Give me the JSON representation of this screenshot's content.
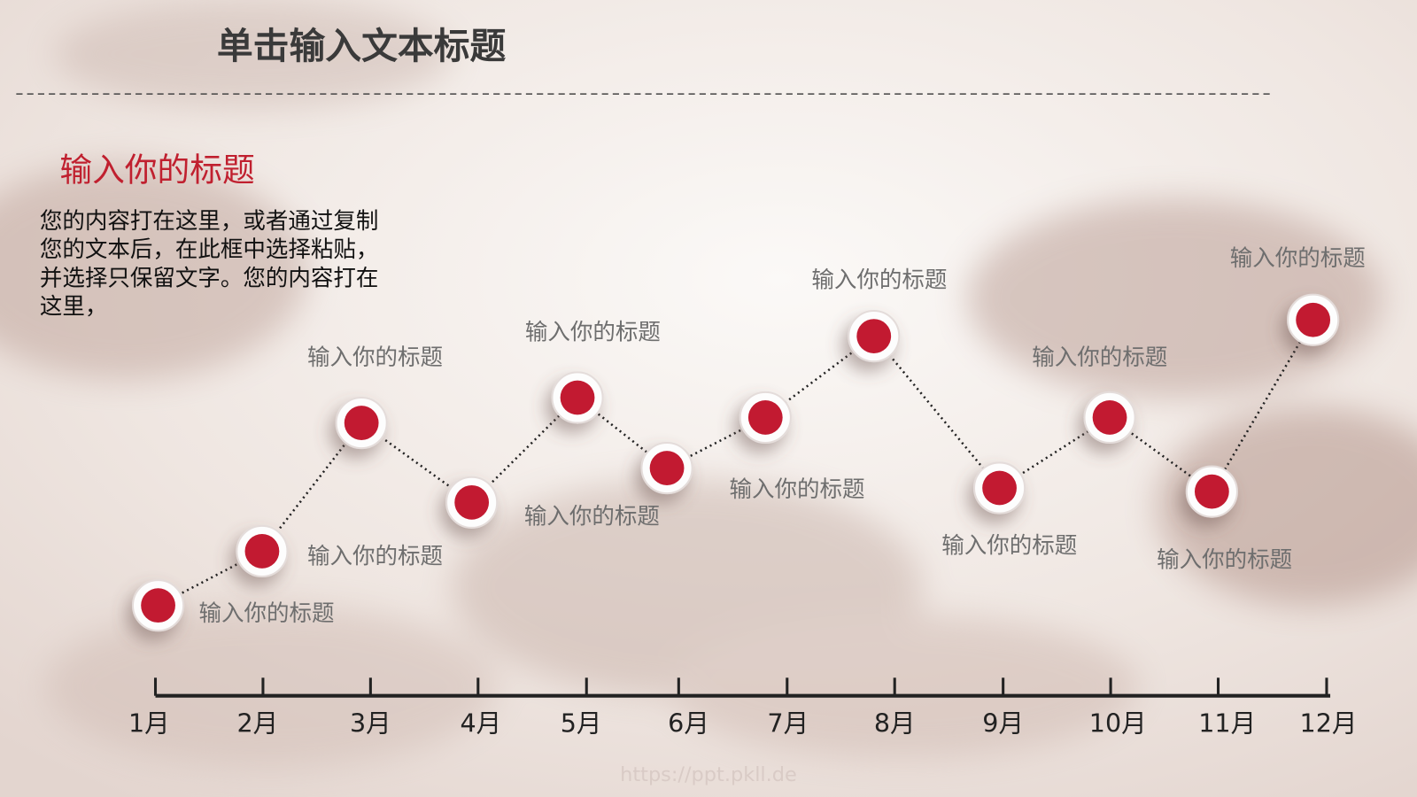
{
  "header": {
    "title": "单击输入文本标题"
  },
  "intro": {
    "heading": "输入你的标题",
    "body": [
      "您的内容打在这里，或者通过复制",
      "您的文本后，在此框中选择粘贴，",
      "并选择只保留文字。您的内容打在",
      "这里，"
    ]
  },
  "timeline": {
    "months": [
      "1月",
      "2月",
      "3月",
      "4月",
      "5月",
      "6月",
      "7月",
      "8月",
      "9月",
      "10月",
      "11月",
      "12月"
    ],
    "labels": [
      "输入你的标题",
      "输入你的标题",
      "输入你的标题",
      "输入你的标题",
      "输入你的标题",
      "输入你的标题",
      "输入你的标题",
      "输入你的标题",
      "输入你的标题",
      "输入你的标题",
      "输入你的标题"
    ]
  },
  "footer": {
    "url": "https://ppt.pkll.de"
  }
}
